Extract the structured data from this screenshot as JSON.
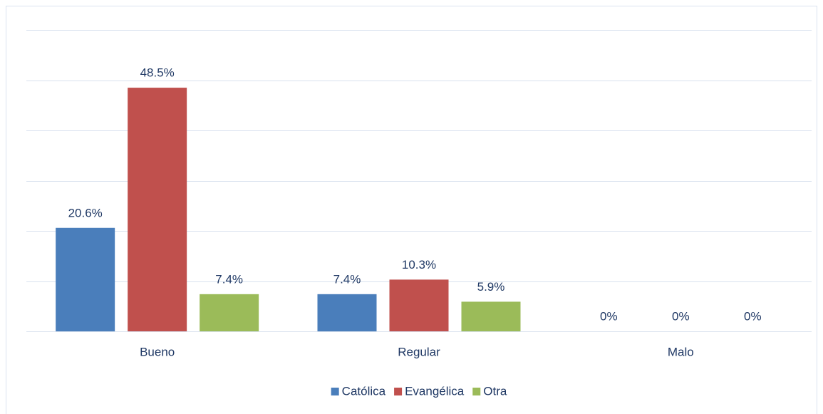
{
  "chart_data": {
    "type": "bar",
    "categories": [
      "Bueno",
      "Regular",
      "Malo"
    ],
    "series": [
      {
        "name": "Católica",
        "color": "#4a7ebb",
        "values": [
          20.6,
          7.4,
          0
        ],
        "value_labels": [
          "20.6%",
          "7.4%",
          "0%"
        ]
      },
      {
        "name": "Evangélica",
        "color": "#c0504d",
        "values": [
          48.5,
          10.3,
          0
        ],
        "value_labels": [
          "48.5%",
          "10.3%",
          "0%"
        ]
      },
      {
        "name": "Otra",
        "color": "#9bbb59",
        "values": [
          7.4,
          5.9,
          0
        ],
        "value_labels": [
          "7.4%",
          "5.9%",
          "0%"
        ]
      }
    ],
    "ylim": [
      0,
      60
    ],
    "yticks": [
      0,
      10,
      20,
      30,
      40,
      50,
      60
    ],
    "grid": true,
    "legend": "bottom"
  }
}
